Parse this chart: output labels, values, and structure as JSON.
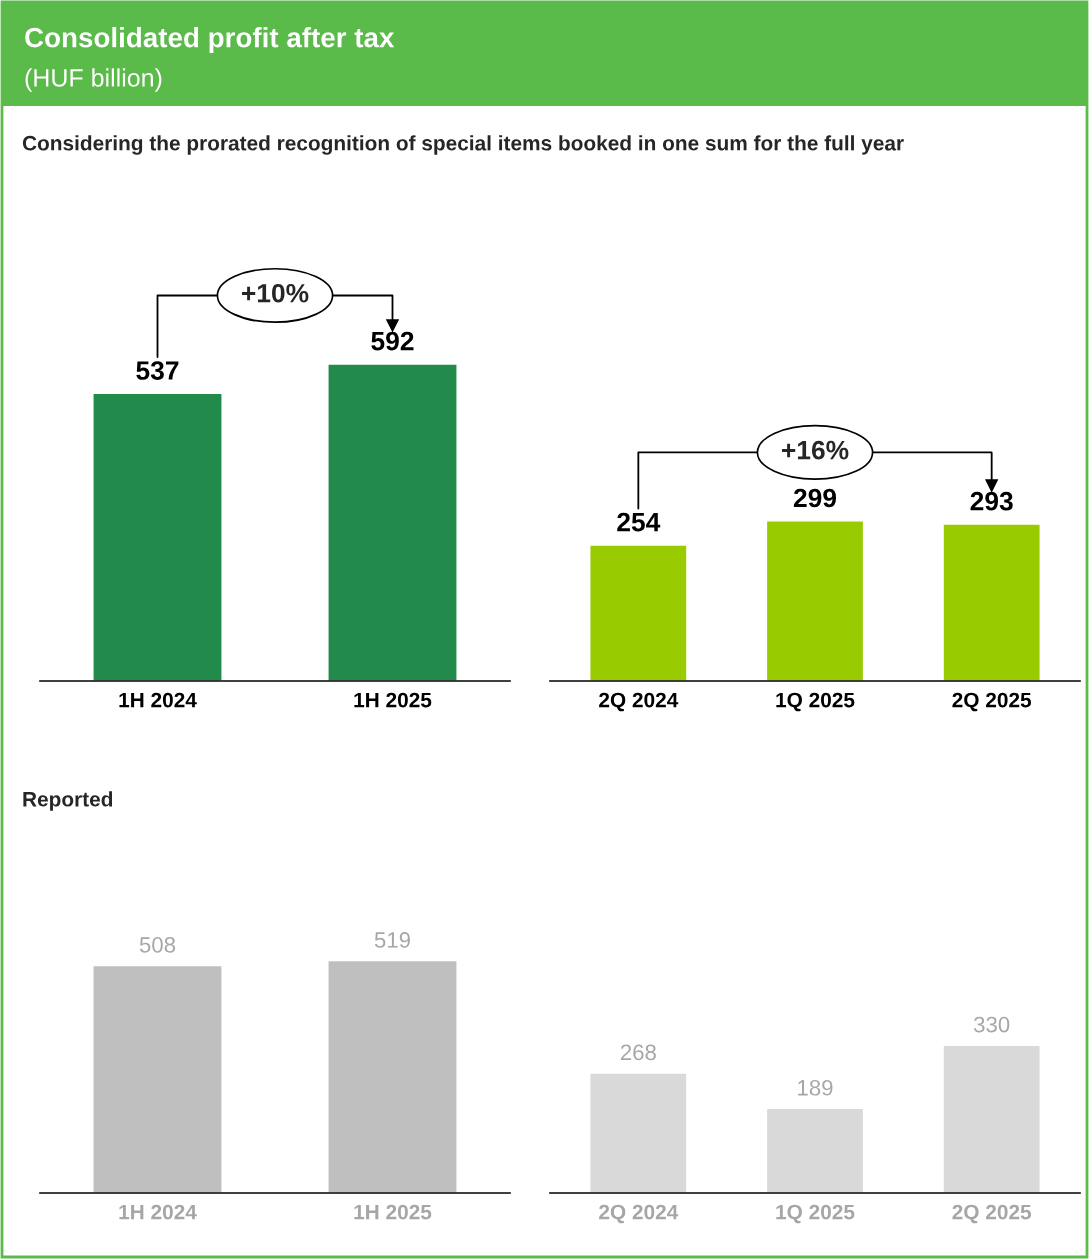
{
  "chart_data": [
    {
      "type": "bar",
      "title": "Consolidated profit after tax",
      "subtitle": "(HUF billion)",
      "categories": [
        "1H 2024",
        "1H 2025"
      ],
      "values": [
        537,
        592
      ],
      "color": "#228b4b",
      "data_labels": true,
      "grid": false,
      "legend": false,
      "annotations": [
        "Considering the prorated recognition of special items booked in one sum for the full year",
        "+10%"
      ]
    },
    {
      "type": "bar",
      "categories": [
        "2Q 2024",
        "1Q 2025",
        "2Q 2025"
      ],
      "values": [
        254,
        299,
        293
      ],
      "color": "#99cc00",
      "data_labels": true,
      "grid": false,
      "legend": false,
      "annotations": [
        "+16%"
      ]
    },
    {
      "type": "bar",
      "categories": [
        "1H 2024",
        "1H 2025"
      ],
      "values": [
        508,
        519
      ],
      "color": "#bfbfbf",
      "data_labels": true,
      "grid": false,
      "legend": false,
      "annotations": [
        "Reported"
      ]
    },
    {
      "type": "bar",
      "categories": [
        "2Q 2024",
        "1Q 2025",
        "2Q 2025"
      ],
      "values": [
        268,
        189,
        330
      ],
      "color": "#d9d9d9",
      "data_labels": true,
      "grid": false,
      "legend": false
    }
  ]
}
